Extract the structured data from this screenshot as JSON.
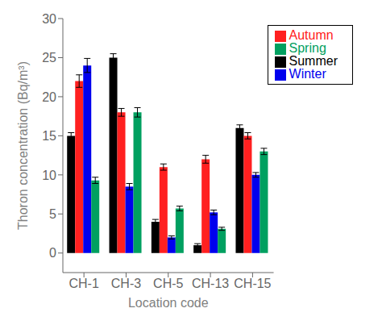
{
  "chart_data": {
    "type": "bar",
    "xlabel": "Location code",
    "ylabel": "Thoron concentration (Bq/m³)",
    "categories": [
      "CH-1",
      "CH-3",
      "CH-5",
      "CH-13",
      "CH-15"
    ],
    "series": [
      {
        "name": "Summer",
        "color": "#000000",
        "values": [
          15.0,
          25.0,
          4.0,
          1.0,
          16.0
        ],
        "errors": [
          0.4,
          0.5,
          0.3,
          0.2,
          0.4
        ]
      },
      {
        "name": "Autumn",
        "color": "#ff2020",
        "values": [
          22.0,
          18.0,
          11.0,
          12.0,
          15.0
        ],
        "errors": [
          0.8,
          0.5,
          0.4,
          0.5,
          0.4
        ]
      },
      {
        "name": "Winter",
        "color": "#0000ee",
        "values": [
          24.0,
          8.5,
          2.0,
          5.2,
          10.0
        ],
        "errors": [
          0.9,
          0.4,
          0.2,
          0.3,
          0.3
        ]
      },
      {
        "name": "Spring",
        "color": "#00a060",
        "values": [
          9.3,
          18.0,
          5.7,
          3.1,
          13.0
        ],
        "errors": [
          0.4,
          0.6,
          0.3,
          0.2,
          0.4
        ]
      }
    ],
    "ylim": [
      -2.5,
      30
    ],
    "yticks": [
      0,
      5,
      10,
      15,
      20,
      25,
      30
    ],
    "grid": false,
    "legend": "upper right"
  }
}
